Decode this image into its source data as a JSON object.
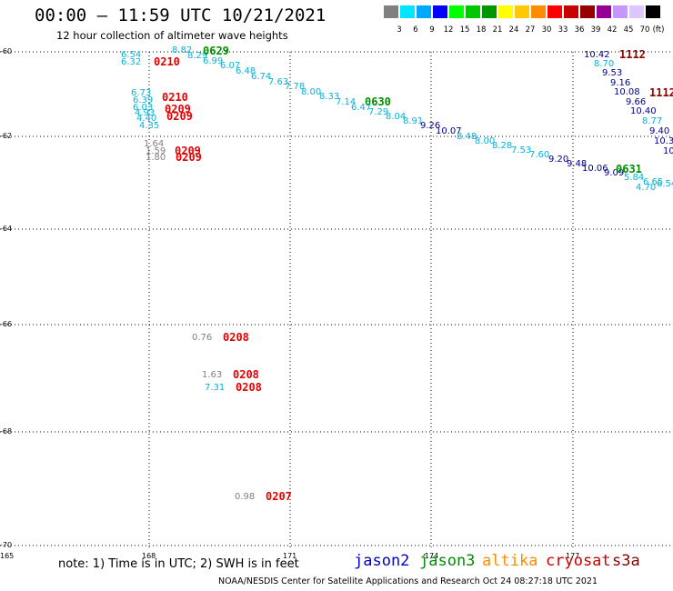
{
  "header": {
    "title": "00:00 – 11:59 UTC 10/21/2021",
    "subtitle": "12 hour collection of altimeter wave heights"
  },
  "colorbar": {
    "swatches": [
      "#808080",
      "#00e5ff",
      "#00a8ff",
      "#0000ff",
      "#00ff00",
      "#00c800",
      "#009600",
      "#ffff00",
      "#ffc800",
      "#ff8c00",
      "#ff0000",
      "#c80000",
      "#960000",
      "#960096",
      "#c896ff",
      "#dcc8ff",
      "#000000"
    ],
    "labels": [
      "3",
      "6",
      "9",
      "12",
      "15",
      "18",
      "21",
      "24",
      "27",
      "30",
      "33",
      "36",
      "39",
      "42",
      "45",
      "70",
      "(ft)"
    ]
  },
  "axes": {
    "lat_labels": [
      "-60",
      "-62",
      "-64",
      "-66",
      "-68",
      "-70"
    ],
    "lon_labels": [
      "165",
      "168",
      "171",
      "-174",
      "177"
    ]
  },
  "footer": {
    "note": "note:  1) Time is in UTC;  2) SWH is in feet",
    "satellites": [
      {
        "name": "jason2",
        "color": "#0000c8"
      },
      {
        "name": "jason3",
        "color": "#008c00"
      },
      {
        "name": "altika",
        "color": "#ff8c00"
      },
      {
        "name": "cryosat",
        "color": "#c80000"
      },
      {
        "name": "s3a",
        "color": "#8c0000"
      }
    ],
    "credit": "NOAA/NESDIS Center for Satellite Applications and Research     Oct 24 08:27:18 UTC 2021"
  },
  "wave_labels": [
    {
      "text": "6.54",
      "color": "#00b4dc"
    },
    {
      "text": "6.32",
      "color": "#00b4dc"
    },
    {
      "text": "0210",
      "color": "#e60000"
    },
    {
      "text": "8.82",
      "color": "#00b4dc"
    },
    {
      "text": "8.29",
      "color": "#00b4dc"
    },
    {
      "text": "0629",
      "color": "#008c00"
    },
    {
      "text": "6.99",
      "color": "#00b4dc"
    },
    {
      "text": "6.07",
      "color": "#00b4dc"
    },
    {
      "text": "6.48",
      "color": "#00b4dc"
    },
    {
      "text": "6.74",
      "color": "#00b4dc"
    },
    {
      "text": "7.63",
      "color": "#00b4dc"
    },
    {
      "text": "7.78",
      "color": "#00b4dc"
    },
    {
      "text": "8.00",
      "color": "#00b4dc"
    },
    {
      "text": "8.33",
      "color": "#00b4dc"
    },
    {
      "text": "7.14",
      "color": "#00b4dc"
    },
    {
      "text": "0630",
      "color": "#008c00"
    },
    {
      "text": "6.47",
      "color": "#00b4dc"
    },
    {
      "text": "7.29",
      "color": "#00b4dc"
    },
    {
      "text": "8.04",
      "color": "#00b4dc"
    },
    {
      "text": "8.91",
      "color": "#00b4dc"
    },
    {
      "text": "9.26",
      "color": "#00008c"
    },
    {
      "text": "10.07",
      "color": "#00008c"
    },
    {
      "text": "8.48",
      "color": "#00b4dc"
    },
    {
      "text": "8.00",
      "color": "#00b4dc"
    },
    {
      "text": "8.28",
      "color": "#00b4dc"
    },
    {
      "text": "7.53",
      "color": "#00b4dc"
    },
    {
      "text": "7.60",
      "color": "#00b4dc"
    },
    {
      "text": "9.20",
      "color": "#00008c"
    },
    {
      "text": "9.48",
      "color": "#00008c"
    },
    {
      "text": "10.06",
      "color": "#00008c"
    },
    {
      "text": "9.09",
      "color": "#00008c"
    },
    {
      "text": "0631",
      "color": "#008c00"
    },
    {
      "text": "5.84",
      "color": "#00b4dc"
    },
    {
      "text": "6.65",
      "color": "#00b4dc"
    },
    {
      "text": "4.70",
      "color": "#00b4dc"
    },
    {
      "text": "6.54",
      "color": "#00b4dc"
    },
    {
      "text": "10.42",
      "color": "#00008c"
    },
    {
      "text": "1112",
      "color": "#8c0000"
    },
    {
      "text": "8.70",
      "color": "#00b4dc"
    },
    {
      "text": "9.53",
      "color": "#00008c"
    },
    {
      "text": "9.16",
      "color": "#00008c"
    },
    {
      "text": "10.08",
      "color": "#00008c"
    },
    {
      "text": "1112",
      "color": "#8c0000"
    },
    {
      "text": "9.66",
      "color": "#00008c"
    },
    {
      "text": "10.40",
      "color": "#00008c"
    },
    {
      "text": "8.77",
      "color": "#00b4dc"
    },
    {
      "text": "9.40",
      "color": "#00008c"
    },
    {
      "text": "10.3",
      "color": "#00008c"
    },
    {
      "text": "10",
      "color": "#00008c"
    },
    {
      "text": "6.73",
      "color": "#00b4dc"
    },
    {
      "text": "6.39",
      "color": "#00b4dc"
    },
    {
      "text": "0210",
      "color": "#e60000"
    },
    {
      "text": "6.03",
      "color": "#00b4dc"
    },
    {
      "text": "0209",
      "color": "#e60000"
    },
    {
      "text": "4.93",
      "color": "#00b4dc"
    },
    {
      "text": "4.40",
      "color": "#00b4dc"
    },
    {
      "text": "0209",
      "color": "#e60000"
    },
    {
      "text": "4.35",
      "color": "#00b4dc"
    },
    {
      "text": "1.64",
      "color": "#808080"
    },
    {
      "text": "1.59",
      "color": "#808080"
    },
    {
      "text": "1.80",
      "color": "#808080"
    },
    {
      "text": "0209",
      "color": "#e60000"
    },
    {
      "text": "0209",
      "color": "#e60000"
    },
    {
      "text": "0.76",
      "color": "#808080"
    },
    {
      "text": "0208",
      "color": "#e60000"
    },
    {
      "text": "1.63",
      "color": "#808080"
    },
    {
      "text": "0208",
      "color": "#e60000"
    },
    {
      "text": "7.31",
      "color": "#00b4dc"
    },
    {
      "text": "0208",
      "color": "#e60000"
    },
    {
      "text": "0.98",
      "color": "#808080"
    },
    {
      "text": "0207",
      "color": "#e60000"
    }
  ]
}
